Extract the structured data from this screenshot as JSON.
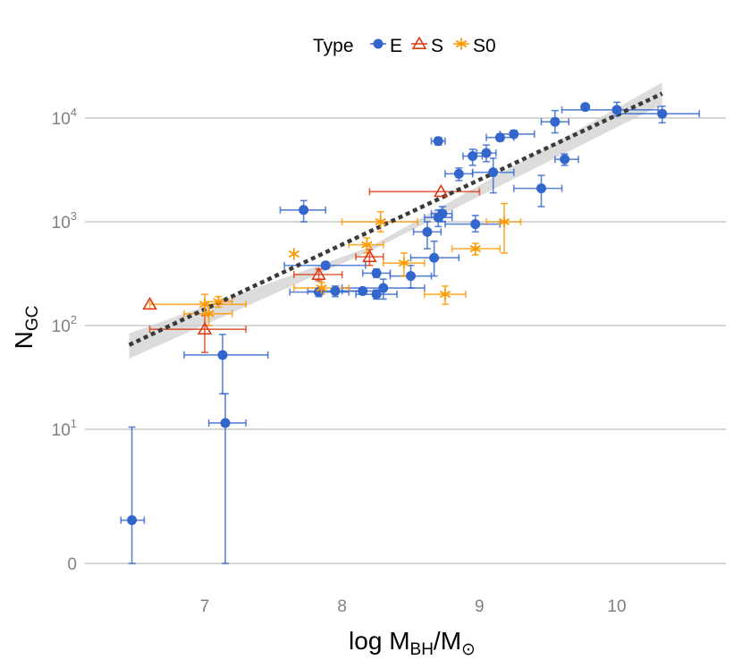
{
  "chart_data": {
    "type": "scatter",
    "title": "",
    "xlabel": "log M_BH/M_⊙",
    "ylabel": "N_GC",
    "x_axis_title": {
      "pre": "log M",
      "sub": "BH",
      "mid": "/M",
      "sub2": "⊙"
    },
    "y_axis_title": {
      "main": "N",
      "sub": "GC"
    },
    "xlim": [
      6.1,
      10.8
    ],
    "y_scale": "log (with zero)",
    "x_ticks": [
      7,
      8,
      9,
      10
    ],
    "x_tick_labels": [
      "7",
      "8",
      "9",
      "10"
    ],
    "y_ticks": [
      {
        "value": 0,
        "label": "0",
        "exp": ""
      },
      {
        "value": 10,
        "label": "10",
        "exp": "1"
      },
      {
        "value": 100,
        "label": "10",
        "exp": "2"
      },
      {
        "value": 1000,
        "label": "10",
        "exp": "3"
      },
      {
        "value": 10000,
        "label": "10",
        "exp": "4"
      }
    ],
    "legend": {
      "title": "Type",
      "position": "top",
      "entries": [
        "E",
        "S",
        "S0"
      ]
    },
    "colors": {
      "E": "#3366cc",
      "S": "#dc3912",
      "S0": "#ff9900",
      "fit": "#3a3a3a",
      "band": "#d0d0d0",
      "grid": "#bdbdbd"
    },
    "fit_line": {
      "x": [
        6.45,
        10.33
      ],
      "y": [
        65,
        17200
      ],
      "style": "dotted"
    },
    "confidence_band": {
      "x": [
        6.45,
        8.2,
        10.33
      ],
      "lower": [
        48,
        520,
        13500
      ],
      "upper": [
        84,
        570,
        22000
      ]
    },
    "series": [
      {
        "name": "E",
        "marker": "circle",
        "points": [
          {
            "x": 6.47,
            "y": 2.1,
            "xerr": [
              6.39,
              6.56
            ],
            "yerr": [
              0,
              10.5
            ]
          },
          {
            "x": 7.13,
            "y": 52,
            "xerr": [
              6.85,
              7.46
            ],
            "yerr": [
              22,
              82
            ]
          },
          {
            "x": 7.15,
            "y": 11.5,
            "xerr": [
              7.03,
              7.3
            ],
            "yerr": [
              0,
              22
            ]
          },
          {
            "x": 7.72,
            "y": 1300,
            "xerr": [
              7.55,
              7.88
            ],
            "yerr": [
              1000,
              1600
            ]
          },
          {
            "x": 7.83,
            "y": 210,
            "xerr": [
              7.62,
              8.05
            ],
            "yerr": [
              190,
              230
            ]
          },
          {
            "x": 7.88,
            "y": 380,
            "xerr": [
              7.58,
              8.17
            ],
            "yerr": [
              360,
              400
            ]
          },
          {
            "x": 7.95,
            "y": 215,
            "xerr": [
              7.75,
              8.15
            ],
            "yerr": [
              190,
              240
            ]
          },
          {
            "x": 8.15,
            "y": 215,
            "xerr": [
              8.0,
              8.3
            ],
            "yerr": [
              200,
              230
            ]
          },
          {
            "x": 8.25,
            "y": 320,
            "xerr": [
              8.15,
              8.35
            ],
            "yerr": [
              290,
              350
            ]
          },
          {
            "x": 8.25,
            "y": 200,
            "xerr": [
              8.1,
              8.4
            ],
            "yerr": [
              180,
              220
            ]
          },
          {
            "x": 8.3,
            "y": 230,
            "xerr": [
              8.0,
              8.6
            ],
            "yerr": [
              180,
              280
            ]
          },
          {
            "x": 8.5,
            "y": 300,
            "xerr": [
              8.35,
              8.65
            ],
            "yerr": [
              230,
              380
            ]
          },
          {
            "x": 8.62,
            "y": 800,
            "xerr": [
              8.52,
              8.72
            ],
            "yerr": [
              550,
              1000
            ]
          },
          {
            "x": 8.67,
            "y": 450,
            "xerr": [
              8.5,
              8.85
            ],
            "yerr": [
              300,
              650
            ]
          },
          {
            "x": 8.7,
            "y": 6000,
            "xerr": [
              8.65,
              8.75
            ],
            "yerr": [
              5500,
              6500
            ]
          },
          {
            "x": 8.7,
            "y": 1100,
            "xerr": [
              8.6,
              8.8
            ],
            "yerr": [
              900,
              1300
            ]
          },
          {
            "x": 8.73,
            "y": 1200,
            "xerr": [
              8.65,
              8.8
            ],
            "yerr": [
              1000,
              1400
            ]
          },
          {
            "x": 8.85,
            "y": 2900,
            "xerr": [
              8.75,
              8.95
            ],
            "yerr": [
              2500,
              3300
            ]
          },
          {
            "x": 8.95,
            "y": 4300,
            "xerr": [
              8.88,
              9.02
            ],
            "yerr": [
              3500,
              5000
            ]
          },
          {
            "x": 8.97,
            "y": 950,
            "xerr": [
              8.75,
              9.15
            ],
            "yerr": [
              800,
              1150
            ]
          },
          {
            "x": 9.05,
            "y": 4600,
            "xerr": [
              8.98,
              9.12
            ],
            "yerr": [
              3800,
              5500
            ]
          },
          {
            "x": 9.1,
            "y": 3000,
            "xerr": [
              8.95,
              9.25
            ],
            "yerr": [
              1900,
              4100
            ]
          },
          {
            "x": 9.15,
            "y": 6500,
            "xerr": [
              9.05,
              9.25
            ],
            "yerr": [
              6000,
              7000
            ]
          },
          {
            "x": 9.25,
            "y": 7000,
            "xerr": [
              9.15,
              9.4
            ],
            "yerr": [
              6500,
              7600
            ]
          },
          {
            "x": 9.45,
            "y": 2100,
            "xerr": [
              9.25,
              9.6
            ],
            "yerr": [
              1400,
              2800
            ]
          },
          {
            "x": 9.55,
            "y": 9200,
            "xerr": [
              9.45,
              9.65
            ],
            "yerr": [
              7200,
              11800
            ]
          },
          {
            "x": 9.62,
            "y": 4000,
            "xerr": [
              9.55,
              9.72
            ],
            "yerr": [
              3500,
              4500
            ]
          },
          {
            "x": 9.77,
            "y": 12800,
            "xerr": [
              9.77,
              9.77
            ],
            "yerr": [
              12800,
              12800
            ]
          },
          {
            "x": 10.0,
            "y": 12000,
            "xerr": [
              9.6,
              10.3
            ],
            "yerr": [
              10500,
              14200
            ]
          },
          {
            "x": 10.33,
            "y": 11000,
            "xerr": [
              10.0,
              10.6
            ],
            "yerr": [
              9000,
              13000
            ]
          }
        ]
      },
      {
        "name": "S",
        "marker": "triangle-open",
        "points": [
          {
            "x": 6.6,
            "y": 160,
            "xerr": [
              6.6,
              6.6
            ],
            "yerr": [
              160,
              160
            ]
          },
          {
            "x": 7.0,
            "y": 92,
            "xerr": [
              6.6,
              7.3
            ],
            "yerr": [
              55,
              125
            ]
          },
          {
            "x": 7.83,
            "y": 310,
            "xerr": [
              7.65,
              8.0
            ],
            "yerr": [
              270,
              350
            ]
          },
          {
            "x": 8.2,
            "y": 460,
            "xerr": [
              8.1,
              8.3
            ],
            "yerr": [
              380,
              540
            ]
          },
          {
            "x": 8.72,
            "y": 1950,
            "xerr": [
              8.2,
              9.0
            ],
            "yerr": [
              1950,
              1950
            ]
          }
        ]
      },
      {
        "name": "S0",
        "marker": "asterisk",
        "points": [
          {
            "x": 7.0,
            "y": 160,
            "xerr": [
              6.6,
              7.3
            ],
            "yerr": [
              130,
              200
            ]
          },
          {
            "x": 7.03,
            "y": 130,
            "xerr": [
              6.85,
              7.2
            ],
            "yerr": [
              100,
              160
            ]
          },
          {
            "x": 7.1,
            "y": 170,
            "xerr": [
              7.0,
              7.2
            ],
            "yerr": [
              150,
              190
            ]
          },
          {
            "x": 7.65,
            "y": 490,
            "xerr": [
              7.65,
              7.65
            ],
            "yerr": [
              490,
              490
            ]
          },
          {
            "x": 7.85,
            "y": 230,
            "xerr": [
              7.65,
              8.05
            ],
            "yerr": [
              200,
              260
            ]
          },
          {
            "x": 8.18,
            "y": 600,
            "xerr": [
              8.05,
              8.3
            ],
            "yerr": [
              500,
              700
            ]
          },
          {
            "x": 8.28,
            "y": 1000,
            "xerr": [
              8.0,
              8.55
            ],
            "yerr": [
              800,
              1250
            ]
          },
          {
            "x": 8.45,
            "y": 400,
            "xerr": [
              8.3,
              8.6
            ],
            "yerr": [
              300,
              500
            ]
          },
          {
            "x": 8.75,
            "y": 200,
            "xerr": [
              8.6,
              8.9
            ],
            "yerr": [
              160,
              240
            ]
          },
          {
            "x": 8.97,
            "y": 550,
            "xerr": [
              8.8,
              9.15
            ],
            "yerr": [
              480,
              620
            ]
          },
          {
            "x": 9.18,
            "y": 1000,
            "xerr": [
              9.05,
              9.3
            ],
            "yerr": [
              500,
              1500
            ]
          }
        ]
      }
    ]
  }
}
